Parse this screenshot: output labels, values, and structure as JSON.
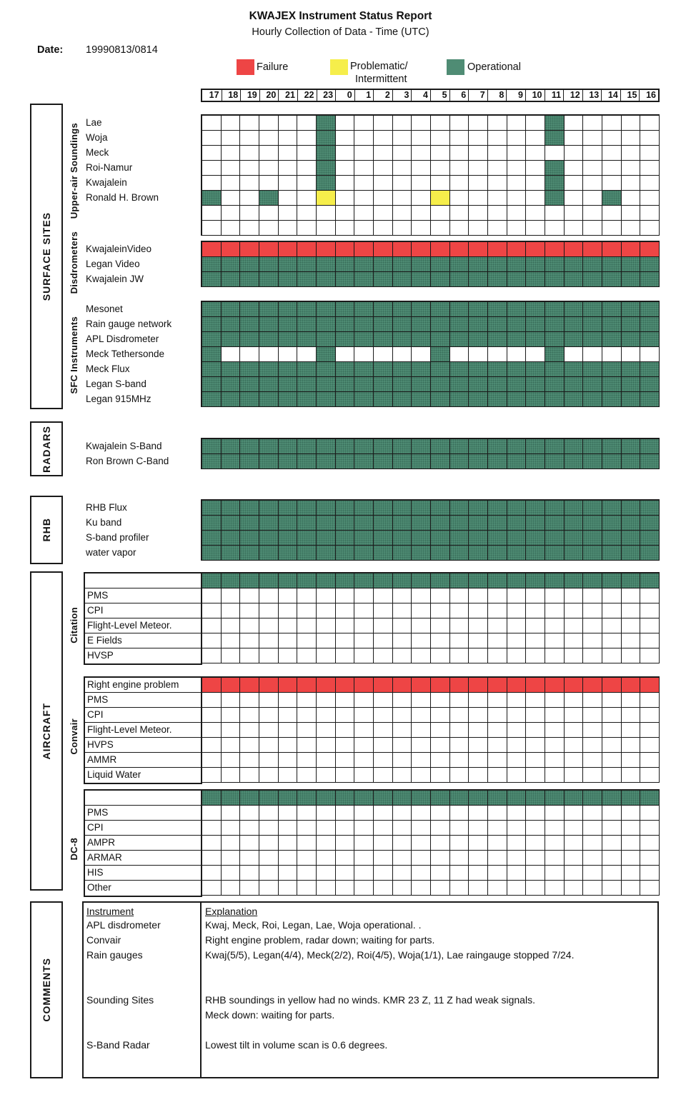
{
  "title": "KWAJEX Instrument Status Report",
  "subtitle": "Hourly Collection of Data - Time (UTC)",
  "date_label": "Date:",
  "date_value": "19990813/0814",
  "legend": [
    {
      "label": "Failure",
      "color": "#ee4545"
    },
    {
      "label": "Problematic/",
      "label2": "Intermittent",
      "color": "#f6ee4b"
    },
    {
      "label": "Operational",
      "color": "#4f8c74"
    }
  ],
  "status_colors": {
    "O": "#4f8c74",
    "F": "#ee4545",
    "P": "#f6ee4b"
  },
  "hours": [
    "17",
    "18",
    "19",
    "20",
    "21",
    "22",
    "23",
    "0",
    "1",
    "2",
    "3",
    "4",
    "5",
    "6",
    "7",
    "8",
    "9",
    "10",
    "11",
    "12",
    "13",
    "14",
    "15",
    "16"
  ],
  "side_sections": [
    "SURFACE SITES",
    "RADARS",
    "RHB",
    "AIRCRAFT",
    "COMMENTS"
  ],
  "sub_sections": [
    "Upper-air Soundings",
    "Disdrometers",
    "SFC Instruments",
    "Citation",
    "Convair",
    "DC-8"
  ],
  "bands": {
    "soundings": {
      "boxed": false,
      "rows": [
        {
          "label": "Lae",
          "cells": "......O...........O....."
        },
        {
          "label": "Woja",
          "cells": "......O...........O....."
        },
        {
          "label": "Meck",
          "cells": "......O................."
        },
        {
          "label": "Roi-Namur",
          "cells": "......O...........O....."
        },
        {
          "label": "Kwajalein",
          "cells": "......O...........O....."
        },
        {
          "label": "Ronald H. Brown",
          "cells": "O..O..P.....P.....O..O.."
        },
        {
          "label": "",
          "cells": "........................"
        },
        {
          "label": "",
          "cells": "........................"
        }
      ]
    },
    "disdrometers": {
      "boxed": false,
      "rows": [
        {
          "label": "KwajaleinVideo",
          "cells": "FFFFFFFFFFFFFFFFFFFFFFFF"
        },
        {
          "label": "Legan Video",
          "cells": "OOOOOOOOOOOOOOOOOOOOOOOO"
        },
        {
          "label": "Kwajalein JW",
          "cells": "OOOOOOOOOOOOOOOOOOOOOOOO"
        }
      ]
    },
    "sfc": {
      "boxed": false,
      "rows": [
        {
          "label": "Mesonet",
          "cells": "OOOOOOOOOOOOOOOOOOOOOOOO"
        },
        {
          "label": "Rain gauge network",
          "cells": "OOOOOOOOOOOOOOOOOOOOOOOO"
        },
        {
          "label": "APL Disdrometer",
          "cells": "OOOOOOOOOOOOOOOOOOOOOOOO"
        },
        {
          "label": "Meck Tethersonde",
          "cells": "O.....O.....O.....O....."
        },
        {
          "label": "Meck Flux",
          "cells": "OOOOOOOOOOOOOOOOOOOOOOOO"
        },
        {
          "label": "Legan S-band",
          "cells": "OOOOOOOOOOOOOOOOOOOOOOOO"
        },
        {
          "label": "Legan 915MHz",
          "cells": "OOOOOOOOOOOOOOOOOOOOOOOO"
        }
      ]
    },
    "radars": {
      "boxed": false,
      "rows": [
        {
          "label": "Kwajalein S-Band",
          "cells": "OOOOOOOOOOOOOOOOOOOOOOOO"
        },
        {
          "label": "Ron Brown C-Band",
          "cells": "OOOOOOOOOOOOOOOOOOOOOOOO"
        }
      ]
    },
    "rhb": {
      "boxed": false,
      "rows": [
        {
          "label": "RHB Flux",
          "cells": "OOOOOOOOOOOOOOOOOOOOOOOO"
        },
        {
          "label": "Ku band",
          "cells": "OOOOOOOOOOOOOOOOOOOOOOOO"
        },
        {
          "label": "S-band profiler",
          "cells": "OOOOOOOOOOOOOOOOOOOOOOOO"
        },
        {
          "label": "water vapor",
          "cells": "OOOOOOOOOOOOOOOOOOOOOOOO"
        }
      ]
    },
    "citation": {
      "boxed": true,
      "rows": [
        {
          "label": "",
          "cells": "OOOOOOOOOOOOOOOOOOOOOOOO"
        },
        {
          "label": "PMS",
          "cells": "........................"
        },
        {
          "label": "CPI",
          "cells": "........................"
        },
        {
          "label": "Flight-Level Meteor.",
          "cells": "........................"
        },
        {
          "label": "E Fields",
          "cells": "........................"
        },
        {
          "label": "HVSP",
          "cells": "........................"
        }
      ]
    },
    "convair": {
      "boxed": true,
      "rows": [
        {
          "label": "Right engine problem",
          "cells": "FFFFFFFFFFFFFFFFFFFFFFFF"
        },
        {
          "label": "PMS",
          "cells": "........................"
        },
        {
          "label": "CPI",
          "cells": "........................"
        },
        {
          "label": "Flight-Level Meteor.",
          "cells": "........................"
        },
        {
          "label": "HVPS",
          "cells": "........................"
        },
        {
          "label": "AMMR",
          "cells": "........................"
        },
        {
          "label": "Liquid Water",
          "cells": "........................"
        }
      ]
    },
    "dc8": {
      "boxed": true,
      "rows": [
        {
          "label": "",
          "cells": "OOOOOOOOOOOOOOOOOOOOOOOO"
        },
        {
          "label": "PMS",
          "cells": "........................"
        },
        {
          "label": "CPI",
          "cells": "........................"
        },
        {
          "label": "AMPR",
          "cells": "........................"
        },
        {
          "label": "ARMAR",
          "cells": "........................"
        },
        {
          "label": "HIS",
          "cells": "........................"
        },
        {
          "label": "Other",
          "cells": "........................"
        }
      ]
    }
  },
  "comments": {
    "header": {
      "instrument": "Instrument",
      "explanation": "Explanation"
    },
    "rows": [
      {
        "label": "APL disdrometer",
        "text": "Kwaj, Meck, Roi, Legan, Lae, Woja operational. ."
      },
      {
        "label": "Convair",
        "text": "Right engine problem, radar down; waiting for parts."
      },
      {
        "label": "Rain gauges",
        "text": "Kwaj(5/5), Legan(4/4), Meck(2/2), Roi(4/5), Woja(1/1), Lae raingauge stopped 7/24."
      },
      {
        "label": "Sounding Sites",
        "text": "RHB soundings in yellow had no winds. KMR 23 Z, 11 Z had weak signals.",
        "text2": "Meck down: waiting for parts."
      },
      {
        "label": "S-Band Radar",
        "text": "Lowest tilt in volume scan is 0.6 degrees."
      }
    ]
  }
}
